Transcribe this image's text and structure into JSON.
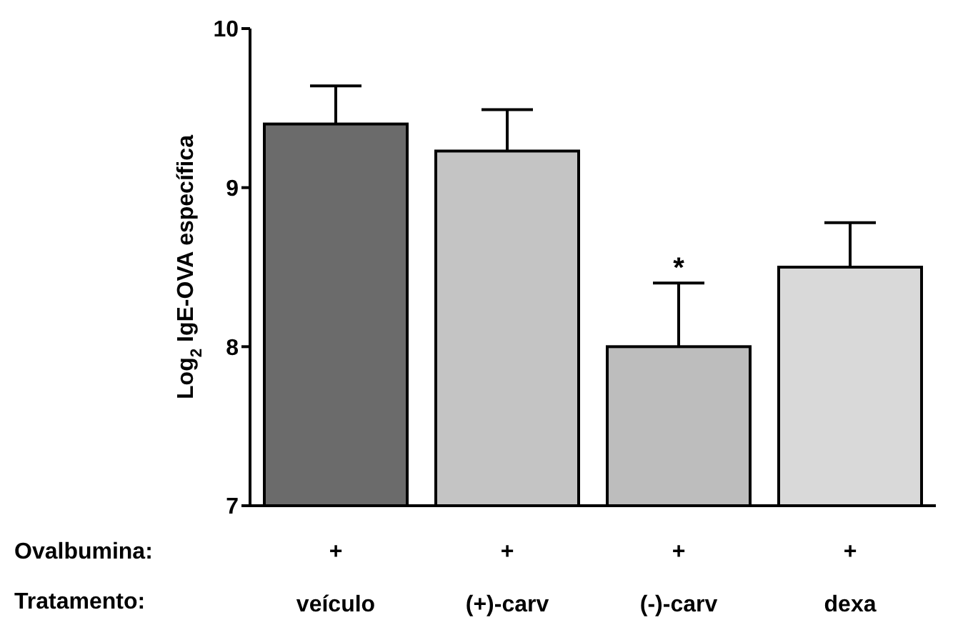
{
  "chart_data": {
    "type": "bar",
    "ylabel": "Log$_{2}$ IgE-OVA específica",
    "categories": [
      "veículo",
      "(+)-carv",
      "(-)-carv",
      "dexa"
    ],
    "values": [
      9.4,
      9.23,
      8.0,
      8.5
    ],
    "errors": [
      0.24,
      0.26,
      0.4,
      0.28
    ],
    "colors": [
      "#6b6b6b",
      "#c4c4c4",
      "#bdbdbd",
      "#d9d9d9"
    ],
    "ylim": [
      7,
      10
    ],
    "yticks": [
      7,
      8,
      9,
      10
    ],
    "grid": false,
    "annotations": [
      {
        "text": "*",
        "x": "(-)-carv",
        "y": 8.4
      },
      "Ovalbumina:",
      "Tratamento:",
      "+",
      "+",
      "+",
      "+"
    ]
  }
}
